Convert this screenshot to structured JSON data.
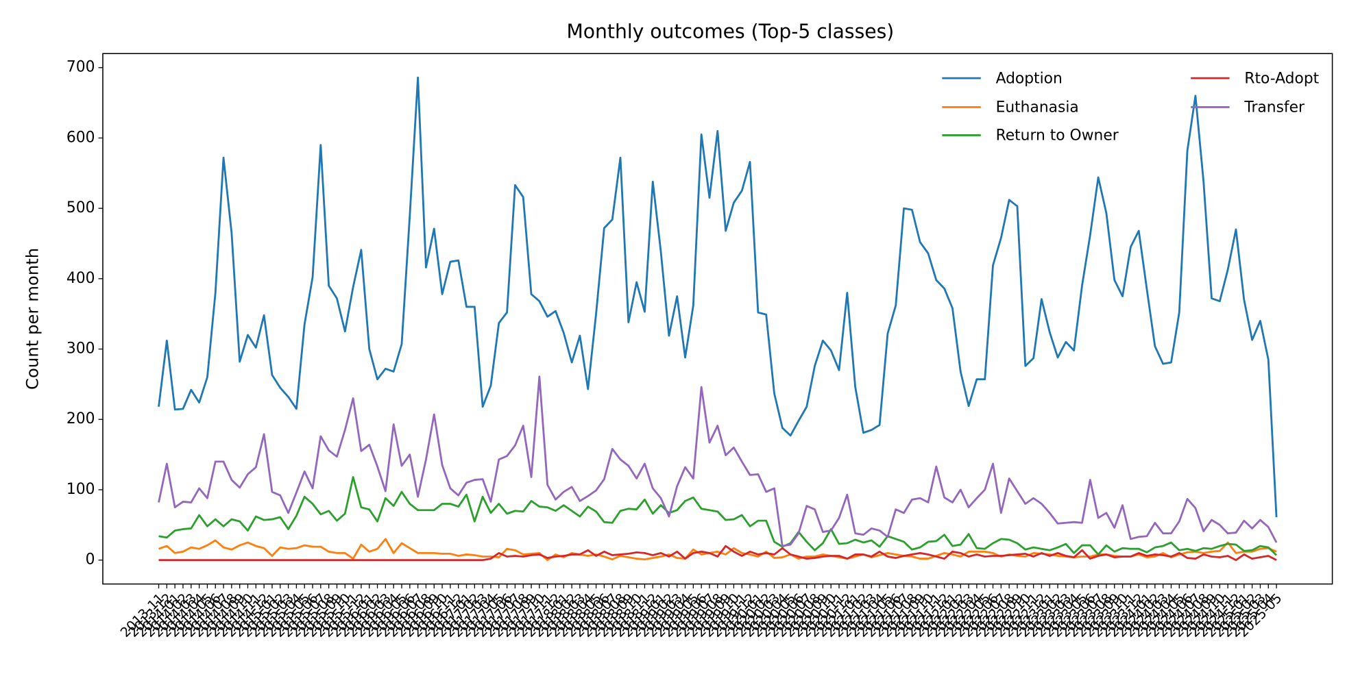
{
  "chart_data": {
    "type": "line",
    "title": "Monthly outcomes (Top-5 classes)",
    "ylabel": "Count per month",
    "categories": [
      "2013-11",
      "2013-12",
      "2014-01",
      "2014-02",
      "2014-03",
      "2014-04",
      "2014-05",
      "2014-06",
      "2014-07",
      "2014-08",
      "2014-09",
      "2014-10",
      "2014-11",
      "2014-12",
      "2015-01",
      "2015-02",
      "2015-03",
      "2015-04",
      "2015-05",
      "2015-06",
      "2015-07",
      "2015-08",
      "2015-09",
      "2015-10",
      "2015-11",
      "2015-12",
      "2016-01",
      "2016-02",
      "2016-03",
      "2016-04",
      "2016-05",
      "2016-06",
      "2016-07",
      "2016-08",
      "2016-09",
      "2016-10",
      "2016-11",
      "2016-12",
      "2017-01",
      "2017-02",
      "2017-03",
      "2017-04",
      "2017-05",
      "2017-06",
      "2017-07",
      "2017-08",
      "2017-09",
      "2017-10",
      "2017-11",
      "2017-12",
      "2018-01",
      "2018-02",
      "2018-03",
      "2018-04",
      "2018-05",
      "2018-06",
      "2018-07",
      "2018-08",
      "2018-09",
      "2018-10",
      "2018-11",
      "2018-12",
      "2019-01",
      "2019-02",
      "2019-03",
      "2019-04",
      "2019-05",
      "2019-06",
      "2019-07",
      "2019-08",
      "2019-09",
      "2019-10",
      "2019-11",
      "2019-12",
      "2020-01",
      "2020-02",
      "2020-03",
      "2020-04",
      "2020-05",
      "2020-06",
      "2020-07",
      "2020-08",
      "2020-09",
      "2020-10",
      "2020-11",
      "2020-12",
      "2021-01",
      "2021-02",
      "2021-03",
      "2021-04",
      "2021-05",
      "2021-06",
      "2021-07",
      "2021-08",
      "2021-09",
      "2021-10",
      "2021-11",
      "2021-12",
      "2022-01",
      "2022-02",
      "2022-03",
      "2022-04",
      "2022-05",
      "2022-06",
      "2022-07",
      "2022-08",
      "2022-09",
      "2022-10",
      "2022-11",
      "2022-12",
      "2023-01",
      "2023-02",
      "2023-03",
      "2023-04",
      "2023-05",
      "2023-06",
      "2023-07",
      "2023-08",
      "2023-09",
      "2023-10",
      "2023-11",
      "2023-12",
      "2024-01",
      "2024-02",
      "2024-03",
      "2024-04",
      "2024-05",
      "2024-06",
      "2024-07",
      "2024-08",
      "2024-09",
      "2024-10",
      "2024-11",
      "2024-12",
      "2025-01",
      "2025-02",
      "2025-03",
      "2025-04",
      "2025-05"
    ],
    "series": [
      {
        "name": "Adoption",
        "color": "#1f77b4",
        "values": [
          218,
          312,
          214,
          215,
          242,
          224,
          260,
          380,
          572,
          465,
          282,
          320,
          302,
          348,
          263,
          245,
          232,
          215,
          335,
          402,
          590,
          390,
          372,
          325,
          388,
          441,
          300,
          257,
          272,
          268,
          307,
          490,
          686,
          416,
          471,
          378,
          424,
          426,
          360,
          360,
          218,
          248,
          337,
          352,
          533,
          516,
          378,
          368,
          346,
          354,
          323,
          281,
          319,
          243,
          350,
          472,
          484,
          572,
          338,
          395,
          353,
          538,
          438,
          319,
          375,
          288,
          362,
          605,
          515,
          610,
          468,
          508,
          525,
          566,
          352,
          349,
          237,
          188,
          177,
          198,
          218,
          276,
          312,
          298,
          270,
          380,
          246,
          181,
          185,
          192,
          322,
          362,
          500,
          498,
          452,
          436,
          398,
          386,
          358,
          268,
          219,
          257,
          257,
          419,
          458,
          512,
          503,
          276,
          287,
          371,
          324,
          288,
          310,
          298,
          390,
          462,
          544,
          493,
          398,
          375,
          445,
          468,
          385,
          304,
          279,
          281,
          352,
          582,
          660,
          538,
          372,
          368,
          413,
          470,
          370,
          313,
          340,
          285,
          61
        ]
      },
      {
        "name": "Euthanasia",
        "color": "#ff7f0e",
        "values": [
          16,
          20,
          10,
          12,
          18,
          16,
          21,
          28,
          18,
          15,
          21,
          25,
          20,
          17,
          6,
          18,
          16,
          17,
          21,
          19,
          19,
          12,
          10,
          10,
          2,
          22,
          12,
          16,
          30,
          10,
          24,
          17,
          10,
          10,
          10,
          9,
          9,
          6,
          8,
          7,
          5,
          5,
          4,
          16,
          14,
          8,
          9,
          10,
          0,
          8,
          4,
          10,
          8,
          6,
          8,
          5,
          1,
          6,
          4,
          2,
          1,
          3,
          5,
          8,
          3,
          2,
          15,
          8,
          10,
          12,
          8,
          17,
          10,
          8,
          5,
          12,
          3,
          4,
          8,
          2,
          5,
          5,
          8,
          6,
          4,
          2,
          5,
          8,
          4,
          7,
          10,
          8,
          6,
          5,
          2,
          2,
          6,
          10,
          8,
          5,
          12,
          12,
          12,
          10,
          5,
          8,
          6,
          5,
          10,
          9,
          8,
          6,
          5,
          4,
          5,
          5,
          8,
          8,
          6,
          5,
          5,
          8,
          4,
          5,
          10,
          4,
          8,
          11,
          12,
          10,
          12,
          13,
          25,
          10,
          12,
          12,
          16,
          17,
          12
        ]
      },
      {
        "name": "Return to Owner",
        "color": "#2ca02c",
        "values": [
          34,
          32,
          42,
          44,
          45,
          64,
          48,
          58,
          48,
          58,
          55,
          42,
          62,
          57,
          58,
          61,
          44,
          63,
          90,
          80,
          65,
          70,
          56,
          66,
          118,
          75,
          72,
          55,
          88,
          77,
          97,
          80,
          71,
          71,
          71,
          80,
          80,
          76,
          93,
          55,
          90,
          67,
          80,
          66,
          70,
          69,
          84,
          76,
          75,
          70,
          78,
          70,
          62,
          76,
          69,
          54,
          53,
          70,
          73,
          72,
          86,
          66,
          78,
          67,
          71,
          84,
          89,
          73,
          71,
          69,
          57,
          58,
          64,
          48,
          56,
          56,
          26,
          19,
          24,
          40,
          26,
          14,
          24,
          44,
          23,
          24,
          29,
          25,
          28,
          19,
          34,
          30,
          26,
          15,
          18,
          26,
          27,
          36,
          20,
          22,
          37,
          17,
          16,
          24,
          30,
          29,
          24,
          15,
          18,
          16,
          14,
          18,
          23,
          10,
          21,
          21,
          8,
          21,
          12,
          17,
          16,
          16,
          11,
          18,
          20,
          25,
          14,
          16,
          13,
          17,
          16,
          20,
          23,
          22,
          13,
          14,
          20,
          18,
          7
        ]
      },
      {
        "name": "Rto-Adopt",
        "color": "#d62728",
        "values": [
          0,
          0,
          0,
          0,
          0,
          0,
          0,
          0,
          0,
          0,
          0,
          0,
          0,
          0,
          0,
          0,
          0,
          0,
          0,
          0,
          0,
          0,
          0,
          0,
          0,
          0,
          0,
          0,
          0,
          0,
          0,
          0,
          0,
          0,
          0,
          0,
          0,
          0,
          0,
          0,
          0,
          2,
          10,
          5,
          6,
          5,
          7,
          8,
          3,
          5,
          6,
          8,
          8,
          14,
          6,
          12,
          7,
          8,
          9,
          11,
          10,
          7,
          10,
          5,
          12,
          2,
          10,
          12,
          10,
          5,
          20,
          12,
          6,
          12,
          8,
          10,
          8,
          17,
          8,
          5,
          2,
          3,
          5,
          6,
          6,
          2,
          8,
          8,
          5,
          12,
          5,
          3,
          6,
          8,
          10,
          8,
          5,
          2,
          12,
          10,
          5,
          8,
          5,
          6,
          6,
          7,
          8,
          9,
          5,
          10,
          6,
          10,
          6,
          4,
          14,
          2,
          6,
          8,
          4,
          5,
          5,
          10,
          6,
          8,
          7,
          5,
          10,
          3,
          2,
          8,
          5,
          4,
          6,
          0,
          8,
          2,
          4,
          6,
          0
        ]
      },
      {
        "name": "Transfer",
        "color": "#9467bd",
        "values": [
          82,
          137,
          75,
          83,
          82,
          102,
          88,
          140,
          140,
          114,
          103,
          122,
          132,
          179,
          97,
          92,
          67,
          96,
          126,
          102,
          176,
          156,
          147,
          185,
          230,
          155,
          164,
          133,
          98,
          193,
          134,
          150,
          90,
          143,
          207,
          135,
          102,
          92,
          110,
          114,
          115,
          83,
          143,
          148,
          163,
          191,
          118,
          261,
          107,
          86,
          97,
          104,
          84,
          91,
          99,
          115,
          158,
          143,
          134,
          116,
          137,
          102,
          88,
          62,
          105,
          132,
          116,
          246,
          167,
          191,
          149,
          160,
          140,
          121,
          122,
          97,
          102,
          20,
          22,
          38,
          77,
          72,
          40,
          42,
          60,
          93,
          38,
          36,
          45,
          42,
          33,
          72,
          67,
          86,
          88,
          82,
          133,
          89,
          82,
          100,
          75,
          88,
          100,
          137,
          67,
          116,
          98,
          80,
          88,
          80,
          67,
          52,
          53,
          54,
          53,
          114,
          60,
          67,
          46,
          78,
          30,
          33,
          34,
          53,
          38,
          38,
          55,
          87,
          74,
          41,
          57,
          50,
          38,
          39,
          56,
          45,
          57,
          47,
          25
        ]
      }
    ],
    "ylim": [
      -34,
      720
    ],
    "yticks": [
      0,
      100,
      200,
      300,
      400,
      500,
      600,
      700
    ],
    "grid": false,
    "legend": "upper right",
    "legend_columns": 2
  }
}
